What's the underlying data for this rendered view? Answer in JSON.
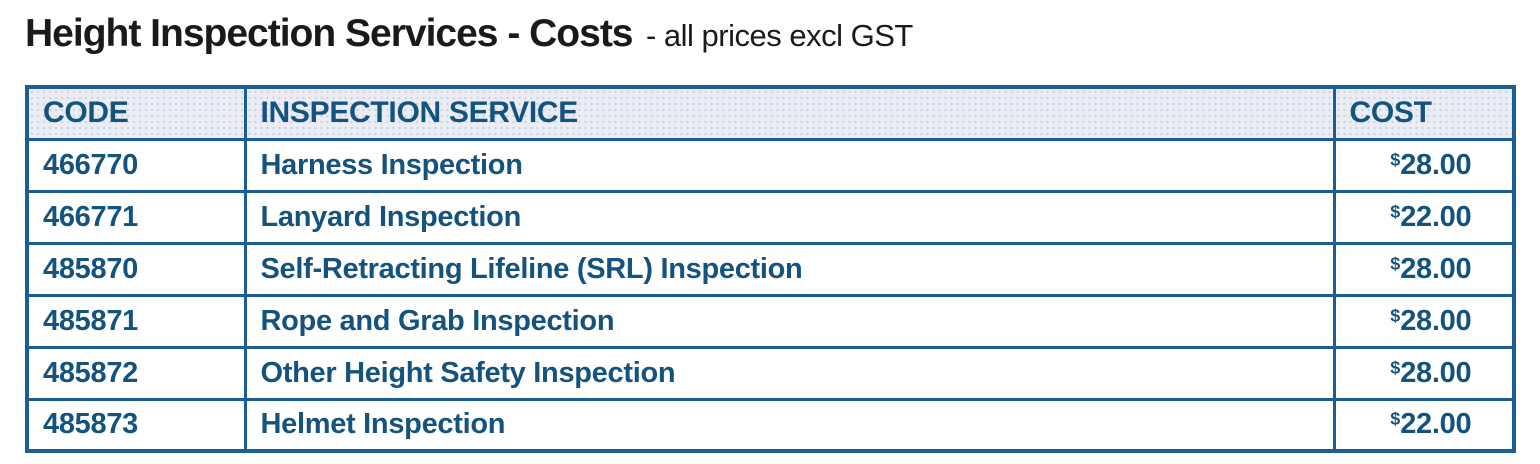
{
  "page": {
    "title_bold": "Height Inspection Services - Costs",
    "title_note": "- all prices excl GST"
  },
  "table": {
    "headers": {
      "code": "CODE",
      "service": "INSPECTION SERVICE",
      "cost": "COST"
    },
    "currency_symbol": "$",
    "rows": [
      {
        "code": "466770",
        "service": "Harness Inspection",
        "cost": "28.00"
      },
      {
        "code": "466771",
        "service": "Lanyard Inspection",
        "cost": "22.00"
      },
      {
        "code": "485870",
        "service": "Self-Retracting Lifeline (SRL) Inspection",
        "cost": "28.00"
      },
      {
        "code": "485871",
        "service": "Rope and Grab Inspection",
        "cost": "28.00"
      },
      {
        "code": "485872",
        "service": "Other Height Safety Inspection",
        "cost": "28.00"
      },
      {
        "code": "485873",
        "service": "Helmet Inspection",
        "cost": "22.00"
      }
    ]
  },
  "colors": {
    "text_blue": "#15537f",
    "border_blue": "#1d5d95",
    "header_bg": "#ebedf5",
    "title_black": "#1a1a1a"
  }
}
